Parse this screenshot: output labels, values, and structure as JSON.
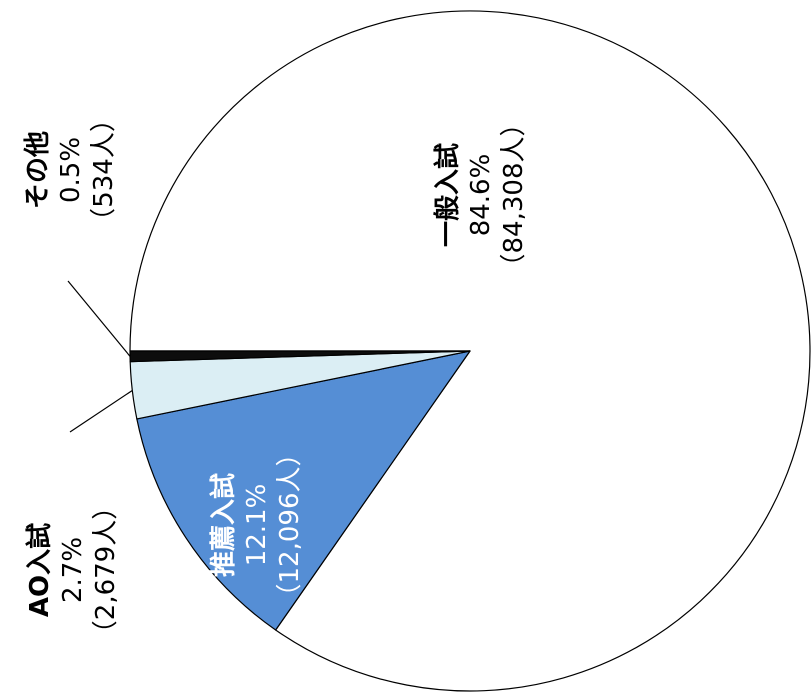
{
  "chart_data": {
    "type": "pie",
    "title": "",
    "unit": "人",
    "slices": [
      {
        "name": "一般入試",
        "percent_label": "84.6%",
        "count_label": "（84,308人）",
        "percent": 84.6,
        "count": 84308,
        "color": "#ffffff",
        "text_color": "#000000"
      },
      {
        "name": "推薦入試",
        "percent_label": "12.1%",
        "count_label": "（12,096人）",
        "percent": 12.1,
        "count": 12096,
        "color": "#558ed5",
        "text_color": "#ffffff"
      },
      {
        "name": "AO入試",
        "percent_label": "2.7%",
        "count_label": "（2,679人）",
        "percent": 2.7,
        "count": 2679,
        "color": "#dbeef4",
        "text_color": "#000000"
      },
      {
        "name": "その他",
        "percent_label": "0.5%",
        "count_label": "（534人）",
        "percent": 0.5,
        "count": 534,
        "color": "#0d0d0d",
        "text_color": "#000000"
      }
    ]
  }
}
